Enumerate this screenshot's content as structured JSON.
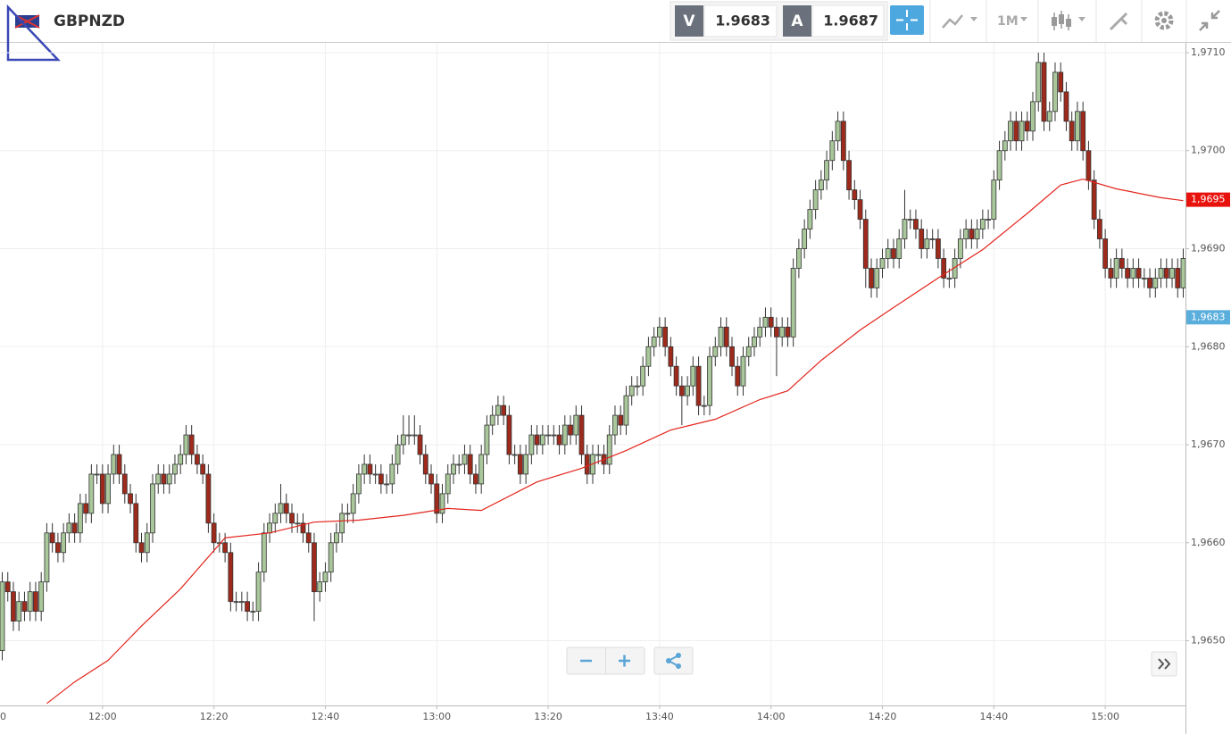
{
  "toolbar": {
    "symbol": "GBPNZD",
    "bid_label": "V",
    "bid": "1.9683",
    "ask_label": "A",
    "ask": "1.9687",
    "timeframe": "1M"
  },
  "chart_data": {
    "type": "candlestick",
    "up_color": "#a9c79a",
    "down_color": "#9e2a1c",
    "grid": true,
    "xlim": [
      701.6,
      914.4
    ],
    "ylim": [
      1.96434,
      1.9711
    ],
    "xticks": [
      {
        "value": 700,
        "label": "0"
      },
      {
        "value": 720,
        "label": "12:00"
      },
      {
        "value": 740,
        "label": "12:20"
      },
      {
        "value": 760,
        "label": "12:40"
      },
      {
        "value": 780,
        "label": "13:00"
      },
      {
        "value": 800,
        "label": "13:20"
      },
      {
        "value": 820,
        "label": "13:40"
      },
      {
        "value": 840,
        "label": "14:00"
      },
      {
        "value": 860,
        "label": "14:20"
      },
      {
        "value": 880,
        "label": "14:40"
      },
      {
        "value": 900,
        "label": "15:00"
      }
    ],
    "yticks": [
      {
        "value": 1.965,
        "label": "1,9650"
      },
      {
        "value": 1.966,
        "label": "1,9660"
      },
      {
        "value": 1.967,
        "label": "1,9670"
      },
      {
        "value": 1.968,
        "label": "1,9680"
      },
      {
        "value": 1.969,
        "label": "1,9690"
      },
      {
        "value": 1.97,
        "label": "1,9700"
      },
      {
        "value": 1.971,
        "label": "1,9710"
      }
    ],
    "price_tags": [
      {
        "value": 1.9695,
        "label": "1,9695",
        "color": "#e8120c"
      },
      {
        "value": 1.9683,
        "label": "1,9683",
        "color": "#5aaedc"
      }
    ],
    "x": [
      702,
      703,
      704,
      705,
      706,
      707,
      708,
      709,
      710,
      711,
      712,
      713,
      714,
      715,
      716,
      717,
      718,
      719,
      720,
      721,
      722,
      723,
      724,
      725,
      726,
      727,
      728,
      729,
      730,
      731,
      732,
      733,
      734,
      735,
      736,
      737,
      738,
      739,
      740,
      741,
      742,
      743,
      744,
      745,
      746,
      747,
      748,
      749,
      750,
      751,
      752,
      753,
      754,
      755,
      756,
      757,
      758,
      759,
      760,
      761,
      762,
      763,
      764,
      765,
      766,
      767,
      768,
      769,
      770,
      771,
      772,
      773,
      774,
      775,
      776,
      777,
      778,
      779,
      780,
      781,
      782,
      783,
      784,
      785,
      786,
      787,
      788,
      789,
      790,
      791,
      792,
      793,
      794,
      795,
      796,
      797,
      798,
      799,
      800,
      801,
      802,
      803,
      804,
      805,
      806,
      807,
      808,
      809,
      810,
      811,
      812,
      813,
      814,
      815,
      816,
      817,
      818,
      819,
      820,
      821,
      822,
      823,
      824,
      825,
      826,
      827,
      828,
      829,
      830,
      831,
      832,
      833,
      834,
      835,
      836,
      837,
      838,
      839,
      840,
      841,
      842,
      843,
      844,
      845,
      846,
      847,
      848,
      849,
      850,
      851,
      852,
      853,
      854,
      855,
      856,
      857,
      858,
      859,
      860,
      861,
      862,
      863,
      864,
      865,
      866,
      867,
      868,
      869,
      870,
      871,
      872,
      873,
      874,
      875,
      876,
      877,
      878,
      879,
      880,
      881,
      882,
      883,
      884,
      885,
      886,
      887,
      888,
      889,
      890,
      891,
      892,
      893,
      894,
      895,
      896,
      897,
      898,
      899,
      900,
      901,
      902,
      903,
      904,
      905,
      906,
      907,
      908,
      909,
      910,
      911,
      912,
      913,
      914
    ],
    "open": [
      1.9649,
      1.9656,
      1.9655,
      1.9652,
      1.9654,
      1.9653,
      1.9655,
      1.9653,
      1.9656,
      1.9661,
      1.966,
      1.9659,
      1.9661,
      1.9662,
      1.9661,
      1.9664,
      1.9663,
      1.9667,
      1.9667,
      1.9664,
      1.9667,
      1.9669,
      1.9667,
      1.9665,
      1.9664,
      1.966,
      1.9659,
      1.9661,
      1.9666,
      1.9667,
      1.9666,
      1.9667,
      1.9668,
      1.9669,
      1.9671,
      1.9669,
      1.9668,
      1.9667,
      1.9662,
      1.966,
      1.966,
      1.9659,
      1.9654,
      1.9654,
      1.9654,
      1.9653,
      1.9653,
      1.9657,
      1.9661,
      1.9662,
      1.9663,
      1.9664,
      1.9663,
      1.9662,
      1.9662,
      1.9661,
      1.966,
      1.9655,
      1.9656,
      1.9657,
      1.966,
      1.9661,
      1.9663,
      1.9663,
      1.9665,
      1.9667,
      1.9668,
      1.9667,
      1.9667,
      1.9666,
      1.9666,
      1.9668,
      1.967,
      1.9671,
      1.9671,
      1.9671,
      1.9669,
      1.9667,
      1.9666,
      1.9663,
      1.9665,
      1.9667,
      1.9668,
      1.9668,
      1.9669,
      1.9667,
      1.9666,
      1.9669,
      1.9672,
      1.9673,
      1.9674,
      1.9673,
      1.9669,
      1.9669,
      1.9667,
      1.9669,
      1.9671,
      1.967,
      1.9671,
      1.9671,
      1.9671,
      1.967,
      1.9672,
      1.9671,
      1.9673,
      1.9669,
      1.9667,
      1.9669,
      1.9669,
      1.9668,
      1.9671,
      1.9673,
      1.9672,
      1.9675,
      1.9676,
      1.9676,
      1.9678,
      1.968,
      1.9681,
      1.9682,
      1.968,
      1.9678,
      1.9676,
      1.9675,
      1.9676,
      1.9678,
      1.9674,
      1.9674,
      1.9679,
      1.968,
      1.9682,
      1.968,
      1.9678,
      1.9676,
      1.9679,
      1.968,
      1.9681,
      1.9682,
      1.9683,
      1.9682,
      1.9681,
      1.9682,
      1.9681,
      1.9688,
      1.969,
      1.9692,
      1.9694,
      1.9696,
      1.9697,
      1.9699,
      1.9701,
      1.9703,
      1.9699,
      1.9696,
      1.9695,
      1.9693,
      1.9688,
      1.9686,
      1.9688,
      1.9689,
      1.969,
      1.9689,
      1.9691,
      1.9693,
      1.9693,
      1.9692,
      1.969,
      1.9691,
      1.9691,
      1.9689,
      1.9687,
      1.9687,
      1.9689,
      1.9691,
      1.9692,
      1.9691,
      1.9692,
      1.9693,
      1.9693,
      1.9697,
      1.97,
      1.9701,
      1.9703,
      1.9701,
      1.9703,
      1.9702,
      1.9705,
      1.9709,
      1.9703,
      1.9704,
      1.9708,
      1.9706,
      1.9703,
      1.9701,
      1.9704,
      1.97,
      1.9697,
      1.9693,
      1.9691,
      1.9688,
      1.9687,
      1.9689,
      1.9688,
      1.9687,
      1.9688,
      1.9687,
      1.9687,
      1.9686,
      1.9687,
      1.9688,
      1.9687,
      1.9688,
      1.9686
    ],
    "high": [
      1.9657,
      1.9657,
      1.9656,
      1.9655,
      1.9655,
      1.9656,
      1.9656,
      1.9657,
      1.9662,
      1.9662,
      1.9661,
      1.9662,
      1.9663,
      1.9663,
      1.9665,
      1.9665,
      1.9668,
      1.9668,
      1.9668,
      1.9668,
      1.967,
      1.967,
      1.9668,
      1.9666,
      1.9665,
      1.9661,
      1.9662,
      1.9667,
      1.9668,
      1.9668,
      1.9668,
      1.9669,
      1.967,
      1.9672,
      1.9672,
      1.967,
      1.9669,
      1.9668,
      1.9663,
      1.9661,
      1.9661,
      1.966,
      1.9655,
      1.9655,
      1.9655,
      1.9654,
      1.9658,
      1.9662,
      1.9663,
      1.9664,
      1.9666,
      1.9665,
      1.9664,
      1.9663,
      1.9663,
      1.9662,
      1.9661,
      1.9657,
      1.9658,
      1.9661,
      1.9662,
      1.9664,
      1.9664,
      1.9666,
      1.9668,
      1.9669,
      1.9669,
      1.9668,
      1.9668,
      1.9667,
      1.9669,
      1.9671,
      1.9673,
      1.9673,
      1.9673,
      1.9672,
      1.967,
      1.9668,
      1.9667,
      1.9666,
      1.9668,
      1.9669,
      1.9669,
      1.967,
      1.967,
      1.9668,
      1.967,
      1.9673,
      1.9674,
      1.9675,
      1.9675,
      1.9674,
      1.967,
      1.967,
      1.967,
      1.9672,
      1.9672,
      1.9672,
      1.9672,
      1.9672,
      1.9672,
      1.9673,
      1.9673,
      1.9674,
      1.9674,
      1.967,
      1.967,
      1.967,
      1.967,
      1.9672,
      1.9674,
      1.9674,
      1.9676,
      1.9677,
      1.9677,
      1.9679,
      1.9681,
      1.9682,
      1.9683,
      1.9683,
      1.9681,
      1.9679,
      1.9677,
      1.9677,
      1.9679,
      1.9679,
      1.9675,
      1.968,
      1.9681,
      1.9683,
      1.9683,
      1.9681,
      1.9679,
      1.968,
      1.9681,
      1.9682,
      1.9683,
      1.9684,
      1.9684,
      1.9683,
      1.9683,
      1.9683,
      1.9689,
      1.9691,
      1.9693,
      1.9695,
      1.9697,
      1.9698,
      1.97,
      1.9702,
      1.9704,
      1.9704,
      1.97,
      1.9697,
      1.9696,
      1.9694,
      1.9689,
      1.9689,
      1.969,
      1.9691,
      1.9691,
      1.9692,
      1.9696,
      1.9694,
      1.9694,
      1.9693,
      1.9692,
      1.9692,
      1.9692,
      1.969,
      1.9688,
      1.969,
      1.9692,
      1.9693,
      1.9693,
      1.9693,
      1.9694,
      1.9694,
      1.9698,
      1.9701,
      1.9702,
      1.9704,
      1.9704,
      1.9704,
      1.9704,
      1.9706,
      1.971,
      1.971,
      1.9705,
      1.9709,
      1.9709,
      1.9707,
      1.9704,
      1.9705,
      1.9705,
      1.9701,
      1.9698,
      1.9694,
      1.9692,
      1.9689,
      1.969,
      1.969,
      1.9689,
      1.9689,
      1.9689,
      1.9688,
      1.9688,
      1.9688,
      1.9689,
      1.9689,
      1.9689,
      1.9689,
      1.969
    ],
    "low": [
      1.9648,
      1.9654,
      1.9651,
      1.9651,
      1.9652,
      1.9652,
      1.9652,
      1.9652,
      1.9655,
      1.9659,
      1.9658,
      1.9658,
      1.966,
      1.966,
      1.966,
      1.9662,
      1.9662,
      1.9666,
      1.9663,
      1.9663,
      1.9666,
      1.9666,
      1.9664,
      1.9663,
      1.9659,
      1.9658,
      1.9658,
      1.966,
      1.9665,
      1.9665,
      1.9665,
      1.9666,
      1.9667,
      1.9668,
      1.9668,
      1.9667,
      1.9666,
      1.9661,
      1.9659,
      1.9659,
      1.9658,
      1.9653,
      1.9653,
      1.9653,
      1.9652,
      1.9652,
      1.9652,
      1.9656,
      1.966,
      1.9661,
      1.9662,
      1.9662,
      1.9661,
      1.9661,
      1.966,
      1.9659,
      1.9652,
      1.9654,
      1.9655,
      1.9656,
      1.9659,
      1.966,
      1.9662,
      1.9662,
      1.9664,
      1.9666,
      1.9666,
      1.9666,
      1.9665,
      1.9665,
      1.9665,
      1.9667,
      1.9669,
      1.967,
      1.967,
      1.9668,
      1.9666,
      1.9665,
      1.9662,
      1.9662,
      1.9664,
      1.9666,
      1.9667,
      1.9667,
      1.9666,
      1.9665,
      1.9665,
      1.9668,
      1.9671,
      1.9672,
      1.9672,
      1.9668,
      1.9668,
      1.9666,
      1.9666,
      1.9668,
      1.9669,
      1.9669,
      1.967,
      1.967,
      1.9669,
      1.9669,
      1.967,
      1.967,
      1.9668,
      1.9666,
      1.9666,
      1.9668,
      1.9667,
      1.9667,
      1.967,
      1.9671,
      1.9671,
      1.9674,
      1.9675,
      1.9675,
      1.9677,
      1.9679,
      1.968,
      1.9679,
      1.9677,
      1.9675,
      1.9672,
      1.9674,
      1.9675,
      1.9673,
      1.9673,
      1.9673,
      1.9678,
      1.9679,
      1.9679,
      1.9677,
      1.9675,
      1.9675,
      1.9678,
      1.9679,
      1.968,
      1.9681,
      1.9681,
      1.9677,
      1.968,
      1.968,
      1.968,
      1.9687,
      1.9689,
      1.9691,
      1.9693,
      1.9695,
      1.9696,
      1.9698,
      1.97,
      1.9698,
      1.9695,
      1.9694,
      1.9692,
      1.9686,
      1.9685,
      1.9685,
      1.9687,
      1.9688,
      1.9688,
      1.9688,
      1.969,
      1.9692,
      1.9691,
      1.9689,
      1.9689,
      1.969,
      1.9688,
      1.9686,
      1.9686,
      1.9686,
      1.9688,
      1.969,
      1.969,
      1.969,
      1.9691,
      1.9692,
      1.9692,
      1.9696,
      1.9699,
      1.97,
      1.97,
      1.97,
      1.9701,
      1.9701,
      1.9704,
      1.9702,
      1.9702,
      1.9703,
      1.9705,
      1.9702,
      1.97,
      1.97,
      1.9699,
      1.9696,
      1.9692,
      1.969,
      1.9687,
      1.9686,
      1.9686,
      1.9687,
      1.9686,
      1.9686,
      1.9686,
      1.9686,
      1.9685,
      1.9685,
      1.9686,
      1.9686,
      1.9686,
      1.9685,
      1.9685
    ],
    "close": [
      1.9656,
      1.9655,
      1.9652,
      1.9654,
      1.9653,
      1.9655,
      1.9653,
      1.9656,
      1.9661,
      1.966,
      1.9659,
      1.9661,
      1.9662,
      1.9661,
      1.9664,
      1.9663,
      1.9667,
      1.9667,
      1.9664,
      1.9667,
      1.9669,
      1.9667,
      1.9665,
      1.9664,
      1.966,
      1.9659,
      1.9661,
      1.9666,
      1.9667,
      1.9666,
      1.9667,
      1.9668,
      1.9669,
      1.9671,
      1.9669,
      1.9668,
      1.9667,
      1.9662,
      1.966,
      1.966,
      1.9659,
      1.9654,
      1.9654,
      1.9654,
      1.9653,
      1.9653,
      1.9657,
      1.9661,
      1.9662,
      1.9663,
      1.9664,
      1.9663,
      1.9662,
      1.9662,
      1.9661,
      1.966,
      1.9655,
      1.9656,
      1.9657,
      1.966,
      1.9661,
      1.9663,
      1.9663,
      1.9665,
      1.9667,
      1.9668,
      1.9667,
      1.9667,
      1.9666,
      1.9666,
      1.9668,
      1.967,
      1.9671,
      1.9671,
      1.9671,
      1.9669,
      1.9667,
      1.9666,
      1.9663,
      1.9665,
      1.9667,
      1.9668,
      1.9668,
      1.9669,
      1.9667,
      1.9666,
      1.9669,
      1.9672,
      1.9673,
      1.9674,
      1.9673,
      1.9669,
      1.9669,
      1.9667,
      1.9669,
      1.9671,
      1.967,
      1.9671,
      1.9671,
      1.9671,
      1.967,
      1.9672,
      1.9671,
      1.9673,
      1.9669,
      1.9667,
      1.9669,
      1.9669,
      1.9668,
      1.9671,
      1.9673,
      1.9672,
      1.9675,
      1.9676,
      1.9676,
      1.9678,
      1.968,
      1.9681,
      1.9682,
      1.968,
      1.9678,
      1.9676,
      1.9675,
      1.9676,
      1.9678,
      1.9674,
      1.9674,
      1.9679,
      1.968,
      1.9682,
      1.968,
      1.9678,
      1.9676,
      1.9679,
      1.968,
      1.9681,
      1.9682,
      1.9683,
      1.9682,
      1.9681,
      1.9682,
      1.9681,
      1.9688,
      1.969,
      1.9692,
      1.9694,
      1.9696,
      1.9697,
      1.9699,
      1.9701,
      1.9703,
      1.9699,
      1.9696,
      1.9695,
      1.9693,
      1.9688,
      1.9686,
      1.9688,
      1.9689,
      1.969,
      1.9689,
      1.9691,
      1.9693,
      1.9693,
      1.9692,
      1.969,
      1.9691,
      1.9691,
      1.9689,
      1.9687,
      1.9687,
      1.9689,
      1.9691,
      1.9692,
      1.9691,
      1.9692,
      1.9693,
      1.9693,
      1.9697,
      1.97,
      1.9701,
      1.9703,
      1.9701,
      1.9703,
      1.9702,
      1.9705,
      1.9709,
      1.9703,
      1.9704,
      1.9708,
      1.9706,
      1.9703,
      1.9701,
      1.9704,
      1.97,
      1.9697,
      1.9693,
      1.9691,
      1.9688,
      1.9687,
      1.9689,
      1.9688,
      1.9687,
      1.9688,
      1.9687,
      1.9687,
      1.9686,
      1.9687,
      1.9688,
      1.9687,
      1.9688,
      1.9686,
      1.9689
    ],
    "ma": {
      "color": "#e3241c",
      "x": [
        710,
        715,
        721,
        727,
        734,
        742,
        750,
        758,
        766,
        774,
        782,
        788,
        798,
        806,
        814,
        822,
        830,
        838,
        843,
        849,
        856,
        862,
        870,
        878,
        886,
        892,
        896,
        902,
        910,
        914
      ],
      "values": [
        1.96436,
        1.96458,
        1.9648,
        1.96515,
        1.96553,
        1.96605,
        1.9661,
        1.96621,
        1.96623,
        1.96628,
        1.96635,
        1.96633,
        1.96662,
        1.96676,
        1.96694,
        1.96715,
        1.96726,
        1.96746,
        1.96755,
        1.96786,
        1.96817,
        1.9684,
        1.9687,
        1.96899,
        1.96936,
        1.96965,
        1.96971,
        1.96961,
        1.96952,
        1.96949
      ]
    }
  }
}
